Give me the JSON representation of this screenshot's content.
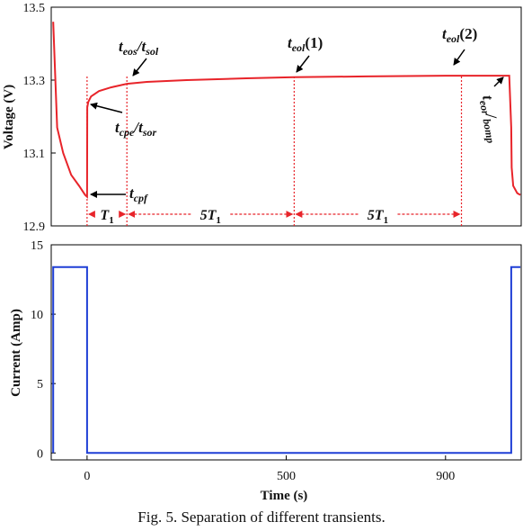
{
  "chart_data": [
    {
      "type": "line",
      "ylabel": "Voltage (V)",
      "xlim": [
        -90,
        1090
      ],
      "ylim": [
        12.9,
        13.5
      ],
      "yticks": [
        "12.9",
        "13.1",
        "13.3",
        "13.5"
      ],
      "ytick_values": [
        12.9,
        13.1,
        13.3,
        13.5
      ],
      "grid": false,
      "series": [
        {
          "color": "#e8242a",
          "x": [
            -85,
            -75,
            -60,
            -40,
            -20,
            -5,
            0,
            0.5,
            3,
            10,
            30,
            60,
            100,
            150,
            250,
            400,
            520,
            700,
            900,
            1060,
            1065,
            1066,
            1070,
            1080,
            1088
          ],
          "y": [
            13.46,
            13.17,
            13.1,
            13.04,
            13.01,
            12.985,
            12.98,
            13.225,
            13.24,
            13.255,
            13.27,
            13.28,
            13.29,
            13.295,
            13.3,
            13.305,
            13.308,
            13.31,
            13.312,
            13.312,
            13.17,
            13.06,
            13.01,
            12.99,
            12.985
          ]
        }
      ],
      "markers": [
        {
          "x": 0,
          "label": "t_cpf"
        },
        {
          "x": 100,
          "label": "t_eos/t_sol"
        },
        {
          "x": 520,
          "label": "t_eol(1)"
        },
        {
          "x": 940,
          "label": "t_eol(2)"
        }
      ],
      "annotations": {
        "t_eos_sol": {
          "main1": "t",
          "sub1": "eos",
          "sep": "/",
          "main2": "t",
          "sub2": "sol"
        },
        "t_eol1": {
          "main": "t",
          "sub": "eol",
          "suffix": "(1)"
        },
        "t_eol2": {
          "main": "t",
          "sub": "eol",
          "suffix": "(2)"
        },
        "t_cpe_sor": {
          "main1": "t",
          "sub1": "cpe",
          "sep": "/",
          "main2": "t",
          "sub2": "sor"
        },
        "t_cpf": {
          "main": "t",
          "sub": "cpf"
        },
        "t_eor_bomp": {
          "main1": "t",
          "sub1": "eor",
          "sep": "/",
          "sub2": "bomp"
        }
      },
      "intervals": [
        {
          "from": 0,
          "to": 100,
          "label_main": "T",
          "label_sub": "1"
        },
        {
          "from": 100,
          "to": 520,
          "label_main": "5T",
          "label_sub": "1"
        },
        {
          "from": 520,
          "to": 940,
          "label_main": "5T",
          "label_sub": "1"
        }
      ]
    },
    {
      "type": "line",
      "xlabel": "Time (s)",
      "ylabel": "Current (Amp)",
      "xlim": [
        -90,
        1090
      ],
      "ylim": [
        -0.5,
        15
      ],
      "xticks": [
        "0",
        "500",
        "900"
      ],
      "xtick_values": [
        0,
        500,
        900
      ],
      "yticks": [
        "0",
        "5",
        "10",
        "15"
      ],
      "ytick_values": [
        0,
        5,
        10,
        15
      ],
      "grid": false,
      "series": [
        {
          "color": "#1f3fd6",
          "x": [
            -85,
            -85,
            0,
            0,
            1065,
            1065,
            1088
          ],
          "y": [
            0,
            13.4,
            13.4,
            0,
            0,
            13.4,
            13.4
          ]
        }
      ]
    }
  ],
  "caption": "Fig. 5. Separation of different transients."
}
